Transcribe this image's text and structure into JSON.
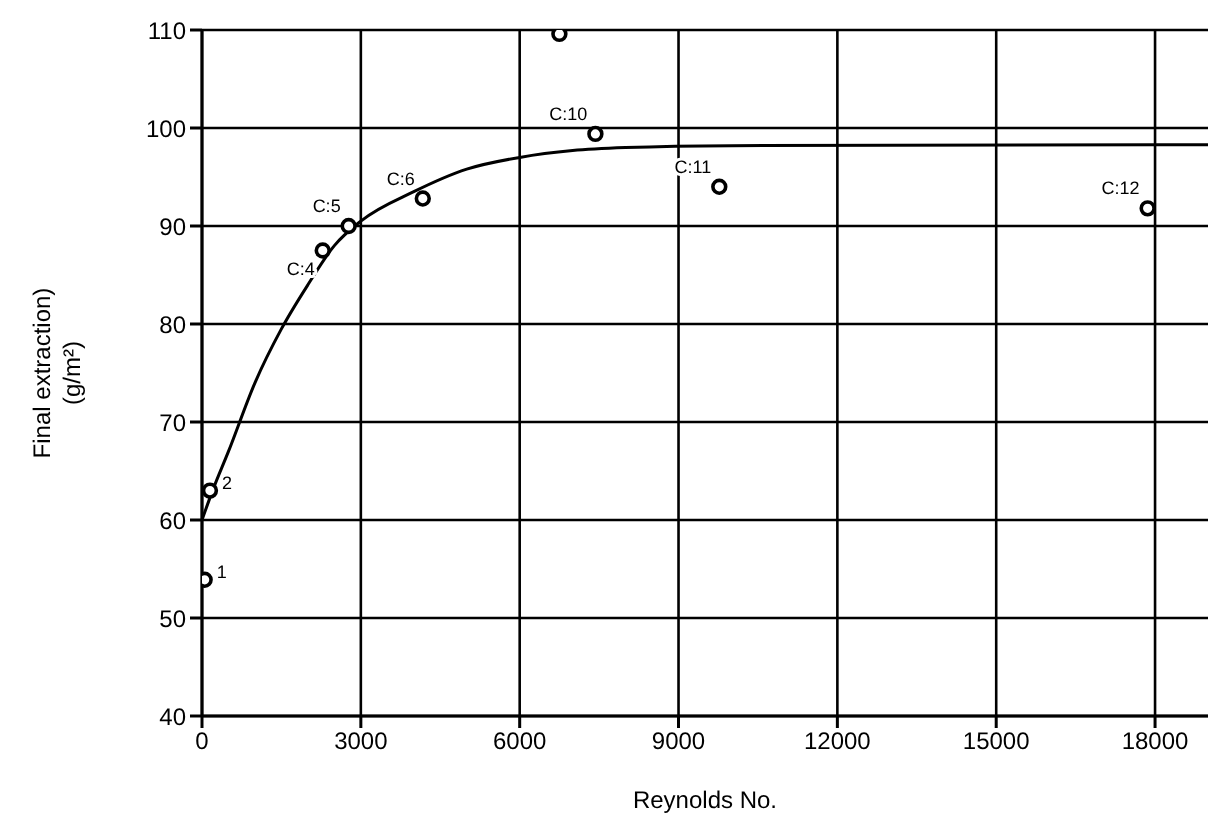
{
  "chart_data": {
    "type": "scatter",
    "xlabel": "Reynolds No.",
    "ylabel": "Final extraction)\n(g/m²)",
    "xlim": [
      0,
      19000
    ],
    "xticks": [
      0,
      3000,
      6000,
      9000,
      12000,
      15000,
      18000
    ],
    "ylim": [
      40,
      110
    ],
    "yticks": [
      40,
      50,
      60,
      70,
      80,
      90,
      100,
      110
    ],
    "grid": true,
    "legend": false,
    "marker": "circle",
    "series": [
      {
        "type": "scatter",
        "color": "#000000",
        "x": [
          50,
          150,
          2280,
          2770,
          4170,
          6750,
          7430,
          9770,
          17860
        ],
        "values": [
          53.9,
          63,
          87.5,
          90,
          92.8,
          109.6,
          99.4,
          94,
          91.8
        ]
      },
      {
        "type": "line",
        "color": "#000000",
        "line_style": "solid",
        "marker": "none",
        "x": [
          0,
          200,
          500,
          1000,
          1500,
          2000,
          2500,
          3000,
          4000,
          5000,
          6000,
          7000,
          8000,
          10000,
          19000
        ],
        "values": [
          60,
          63,
          67,
          74,
          79.5,
          84,
          88,
          90.5,
          93.5,
          95.8,
          97,
          97.7,
          98,
          98.2,
          98.3
        ]
      }
    ],
    "annotations": [
      {
        "text": "1",
        "x": 50,
        "y": 53.9
      },
      {
        "text": "2",
        "x": 150,
        "y": 63
      },
      {
        "text": "C:4",
        "x": 2280,
        "y": 87.5
      },
      {
        "text": "C:5",
        "x": 2770,
        "y": 90
      },
      {
        "text": "C:6",
        "x": 4170,
        "y": 92.8
      },
      {
        "text": "C:10",
        "x": 7430,
        "y": 99.4
      },
      {
        "text": "C:11",
        "x": 9770,
        "y": 94
      },
      {
        "text": "C:12",
        "x": 17860,
        "y": 91.8
      }
    ]
  }
}
